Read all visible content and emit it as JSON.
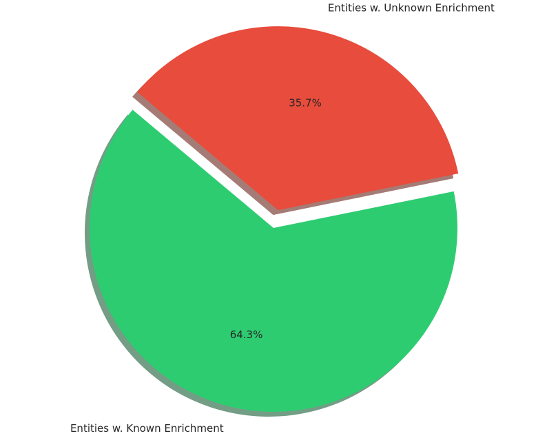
{
  "chart_data": {
    "type": "pie",
    "title": "",
    "start_angle_deg": 140,
    "direction": "counterclockwise",
    "shadow": true,
    "slices": [
      {
        "label": "Entities w. Known Enrichment",
        "value": 64.3,
        "percent_label": "64.3%",
        "color": "#2ecc71",
        "explode": 0
      },
      {
        "label": "Entities w. Unknown Enrichment",
        "value": 35.7,
        "percent_label": "35.7%",
        "color": "#e74c3c",
        "explode": 0.1
      }
    ]
  }
}
